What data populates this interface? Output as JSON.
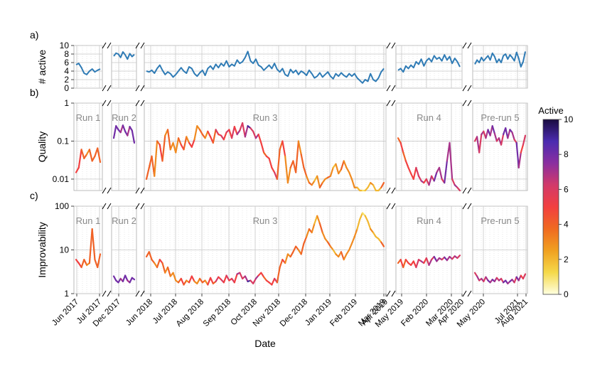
{
  "chart_data": {
    "type": "line",
    "xlabel": "Date",
    "date_ticks": [
      "Jun 2017",
      "Jul 2017",
      "Dec 2017",
      "Jun 2018",
      "Jul 2018",
      "Aug 2018",
      "Sep 2018",
      "Oct 2018",
      "Nov 2018",
      "Dec 2018",
      "Jan 2019",
      "Feb 2019",
      "Mar 2019",
      "Apr 2019",
      "May 2019",
      "Feb 2020",
      "Mar 2020",
      "Apr 2020",
      "May 2020",
      "Jul 2021",
      "Aug 2021"
    ],
    "colorbar": {
      "label": "Active",
      "range": [
        0,
        10
      ],
      "ticks": [
        "0",
        "2",
        "4",
        "6",
        "8",
        "10"
      ],
      "colormap": [
        "#ffffe0",
        "#f5d94a",
        "#f0a020",
        "#f06a20",
        "#f24040",
        "#d23a6a",
        "#8a2fa0",
        "#4b2bb0",
        "#1a0c40"
      ]
    },
    "panels": [
      {
        "label": "a)",
        "ylabel": "# active",
        "yscale": "linear",
        "ylim": [
          0,
          10
        ],
        "yticks": [
          "0",
          "2",
          "4",
          "6",
          "8",
          "10"
        ],
        "series": [
          {
            "segment": "Jun-Jul 2017",
            "values": [
              5.5,
              5.8,
              4.8,
              3.5,
              3.2,
              4.0,
              4.5,
              3.8,
              4.2,
              4.5
            ]
          },
          {
            "segment": "Dec 2017",
            "values": [
              7.5,
              8.2,
              8.0,
              7.2,
              8.5,
              7.8,
              6.8,
              8.1,
              7.4,
              7.9
            ]
          },
          {
            "segment": "Jun 2018 - May 2019",
            "values": [
              4.0,
              3.8,
              4.2,
              3.5,
              4.6,
              5.4,
              4.2,
              3.2,
              3.8,
              3.4,
              2.6,
              3.2,
              4.0,
              4.8,
              4.0,
              3.5,
              5.0,
              4.6,
              3.4,
              2.8,
              3.6,
              4.2,
              3.0,
              4.6,
              5.2,
              4.4,
              5.6,
              4.8,
              5.8,
              5.2,
              6.4,
              5.0,
              5.6,
              5.2,
              6.6,
              5.8,
              6.2,
              7.2,
              8.6,
              6.4,
              5.8,
              6.8,
              5.4,
              5.0,
              4.2,
              4.8,
              5.4,
              4.6,
              5.8,
              4.4,
              3.8,
              4.6,
              3.2,
              2.8,
              4.4,
              3.6,
              4.2,
              3.2,
              4.0,
              3.6,
              3.0,
              4.2,
              3.4,
              2.4,
              2.8,
              3.6,
              2.6,
              3.2,
              3.8,
              2.8,
              2.2,
              3.4,
              2.8,
              3.6,
              3.0,
              2.6,
              3.4,
              2.8,
              3.4,
              2.4,
              1.8,
              1.2,
              2.0,
              1.6,
              3.4,
              2.0,
              1.6,
              2.4,
              3.8,
              4.6
            ]
          },
          {
            "segment": "Feb-May 2020",
            "values": [
              4.2,
              4.6,
              3.8,
              5.2,
              4.6,
              5.4,
              4.8,
              6.2,
              5.6,
              6.8,
              5.2,
              6.4,
              7.0,
              6.2,
              7.6,
              6.8,
              7.2,
              6.4,
              7.8,
              6.6,
              7.4,
              5.8,
              7.0,
              6.2,
              5.0
            ]
          },
          {
            "segment": "Jul-Aug 2021",
            "values": [
              5.6,
              6.6,
              6.0,
              7.2,
              6.4,
              7.0,
              7.6,
              6.6,
              8.2,
              7.4,
              6.0,
              6.8,
              6.0,
              7.6,
              8.0,
              6.8,
              7.8,
              7.2,
              6.4,
              8.4,
              7.0,
              5.0,
              6.2,
              8.6
            ]
          }
        ]
      },
      {
        "label": "b)",
        "ylabel": "Quality",
        "yscale": "log",
        "ylim": [
          0.005,
          1
        ],
        "yticks": [
          "0.01",
          "0.1",
          "1"
        ],
        "run_labels": [
          "Run 1",
          "Run 2",
          "Run 3",
          "Run 4",
          "Pre-run 5"
        ],
        "series": [
          {
            "segment": "Jun-Jul 2017",
            "values": [
              0.015,
              0.02,
              0.06,
              0.035,
              0.045,
              0.06,
              0.03,
              0.04,
              0.065,
              0.028
            ],
            "active": [
              5,
              5,
              4,
              4,
              3,
              4,
              4,
              4,
              4,
              4
            ]
          },
          {
            "segment": "Dec 2017",
            "values": [
              0.12,
              0.25,
              0.2,
              0.17,
              0.26,
              0.18,
              0.14,
              0.24,
              0.19,
              0.09
            ],
            "active": [
              8,
              8,
              8,
              7,
              8,
              8,
              7,
              8,
              8,
              7
            ]
          },
          {
            "segment": "Jun 2018 - May 2019",
            "values": [
              0.01,
              0.02,
              0.04,
              0.012,
              0.1,
              0.08,
              0.03,
              0.14,
              0.2,
              0.06,
              0.09,
              0.05,
              0.12,
              0.08,
              0.06,
              0.13,
              0.09,
              0.07,
              0.11,
              0.25,
              0.2,
              0.15,
              0.12,
              0.18,
              0.13,
              0.09,
              0.2,
              0.15,
              0.14,
              0.11,
              0.17,
              0.2,
              0.12,
              0.24,
              0.15,
              0.19,
              0.3,
              0.13,
              0.25,
              0.22,
              0.18,
              0.12,
              0.15,
              0.09,
              0.05,
              0.04,
              0.035,
              0.02,
              0.015,
              0.01,
              0.06,
              0.1,
              0.04,
              0.008,
              0.02,
              0.03,
              0.015,
              0.1,
              0.045,
              0.02,
              0.012,
              0.008,
              0.007,
              0.009,
              0.012,
              0.006,
              0.008,
              0.01,
              0.011,
              0.012,
              0.02,
              0.025,
              0.014,
              0.018,
              0.03,
              0.02,
              0.015,
              0.01,
              0.006,
              0.006,
              0.005,
              0.005,
              0.005,
              0.006,
              0.008,
              0.007,
              0.005,
              0.005,
              0.006,
              0.008
            ],
            "active": [
              4,
              4,
              4,
              3,
              4,
              5,
              4,
              3,
              4,
              3,
              3,
              3,
              4,
              5,
              4,
              3,
              5,
              5,
              3,
              3,
              4,
              4,
              3,
              5,
              5,
              4,
              6,
              5,
              6,
              5,
              6,
              5,
              6,
              5,
              7,
              6,
              6,
              7,
              9,
              6,
              6,
              7,
              5,
              5,
              4,
              5,
              5,
              5,
              6,
              4,
              4,
              5,
              3,
              3,
              4,
              4,
              4,
              3,
              4,
              4,
              3,
              4,
              3,
              2,
              3,
              4,
              3,
              3,
              4,
              3,
              2,
              3,
              3,
              4,
              3,
              3,
              3,
              3,
              3,
              2,
              2,
              1,
              2,
              2,
              3,
              2,
              2,
              2,
              4,
              5
            ]
          },
          {
            "segment": "Feb-May 2020",
            "values": [
              0.12,
              0.09,
              0.05,
              0.03,
              0.02,
              0.014,
              0.01,
              0.02,
              0.012,
              0.009,
              0.008,
              0.01,
              0.007,
              0.012,
              0.009,
              0.015,
              0.02,
              0.01,
              0.008,
              0.03,
              0.09,
              0.01,
              0.007,
              0.006,
              0.005
            ],
            "active": [
              4,
              5,
              4,
              5,
              5,
              5,
              5,
              6,
              6,
              7,
              5,
              6,
              7,
              6,
              8,
              7,
              7,
              6,
              8,
              7,
              7,
              6,
              7,
              6,
              5
            ]
          },
          {
            "segment": "Jul-Aug 2021",
            "values": [
              0.1,
              0.13,
              0.05,
              0.15,
              0.18,
              0.12,
              0.2,
              0.14,
              0.25,
              0.16,
              0.1,
              0.12,
              0.08,
              0.15,
              0.22,
              0.12,
              0.2,
              0.17,
              0.11,
              0.09,
              0.02,
              0.05,
              0.08,
              0.14
            ],
            "active": [
              6,
              7,
              6,
              7,
              6,
              7,
              8,
              7,
              8,
              7,
              6,
              7,
              6,
              8,
              8,
              7,
              8,
              7,
              6,
              8,
              7,
              5,
              6,
              9
            ]
          }
        ]
      },
      {
        "label": "c)",
        "ylabel": "Improvability",
        "yscale": "log",
        "ylim": [
          1,
          100
        ],
        "yticks": [
          "1",
          "10",
          "100"
        ],
        "run_labels": [
          "Run 1",
          "Run 2",
          "Run 3",
          "Run 4",
          "Pre-run 5"
        ],
        "series": [
          {
            "segment": "Jun-Jul 2017",
            "values": [
              6,
              5,
              4,
              6,
              4.5,
              5,
              30,
              6,
              4,
              8
            ],
            "active": [
              5,
              5,
              4,
              4,
              3,
              4,
              4,
              4,
              4,
              4
            ]
          },
          {
            "segment": "Dec 2017",
            "values": [
              2.5,
              2.0,
              1.8,
              2.2,
              1.9,
              2.6,
              2.0,
              1.8,
              2.3,
              2.1
            ],
            "active": [
              8,
              8,
              8,
              7,
              8,
              8,
              7,
              8,
              8,
              7
            ]
          },
          {
            "segment": "Jun 2018 - May 2019",
            "values": [
              7,
              9,
              6,
              5,
              4,
              6,
              5,
              3,
              4,
              2.5,
              3,
              2,
              1.8,
              2.2,
              1.6,
              2.0,
              1.8,
              2.5,
              1.9,
              1.7,
              2.2,
              1.8,
              2.0,
              1.6,
              2.3,
              1.7,
              1.9,
              2.4,
              2.1,
              1.8,
              2.6,
              2.0,
              2.2,
              1.8,
              2.8,
              3.0,
              2.2,
              2.5,
              1.9,
              2.0,
              1.7,
              2.2,
              2.6,
              3.0,
              2.4,
              2.0,
              1.8,
              1.6,
              2.2,
              1.8,
              4,
              6,
              5,
              8,
              7,
              9,
              12,
              10,
              8,
              14,
              20,
              30,
              25,
              40,
              60,
              40,
              25,
              18,
              15,
              12,
              10,
              8,
              7,
              9,
              6,
              8,
              10,
              14,
              20,
              30,
              50,
              70,
              60,
              45,
              30,
              25,
              20,
              18,
              15,
              12
            ],
            "active": [
              4,
              4,
              4,
              3,
              4,
              5,
              4,
              3,
              4,
              3,
              3,
              3,
              4,
              5,
              4,
              3,
              5,
              5,
              3,
              3,
              4,
              4,
              3,
              5,
              5,
              4,
              6,
              5,
              6,
              5,
              6,
              5,
              6,
              5,
              7,
              6,
              6,
              7,
              9,
              6,
              6,
              7,
              5,
              5,
              4,
              5,
              5,
              5,
              6,
              4,
              4,
              5,
              3,
              3,
              4,
              4,
              4,
              3,
              4,
              4,
              3,
              4,
              3,
              2,
              3,
              4,
              3,
              3,
              4,
              3,
              2,
              3,
              3,
              4,
              3,
              3,
              3,
              3,
              3,
              2,
              2,
              1,
              2,
              2,
              3,
              2,
              2,
              2,
              4,
              5
            ]
          },
          {
            "segment": "Feb-May 2020",
            "values": [
              5,
              6,
              4,
              6,
              5,
              4.5,
              5.5,
              4,
              6,
              5.5,
              5,
              6.5,
              4.5,
              6,
              7,
              5.5,
              6.5,
              6,
              6.8,
              5.8,
              7,
              6.2,
              7.2,
              6.5,
              7.5
            ],
            "active": [
              4,
              5,
              4,
              5,
              5,
              5,
              5,
              6,
              6,
              7,
              5,
              6,
              7,
              6,
              8,
              7,
              7,
              6,
              8,
              7,
              7,
              6,
              7,
              6,
              5
            ]
          },
          {
            "segment": "Jul-Aug 2021",
            "values": [
              3,
              2.5,
              2.0,
              2.2,
              1.9,
              2.4,
              2.0,
              1.8,
              2.1,
              1.9,
              2.3,
              2.0,
              2.2,
              1.8,
              2.0,
              1.7,
              1.9,
              2.1,
              1.8,
              2.4,
              2.0,
              2.6,
              2.2,
              2.8
            ],
            "active": [
              6,
              7,
              6,
              7,
              6,
              7,
              8,
              7,
              8,
              7,
              6,
              7,
              6,
              8,
              8,
              7,
              8,
              7,
              6,
              8,
              7,
              5,
              6,
              9
            ]
          }
        ]
      }
    ]
  }
}
